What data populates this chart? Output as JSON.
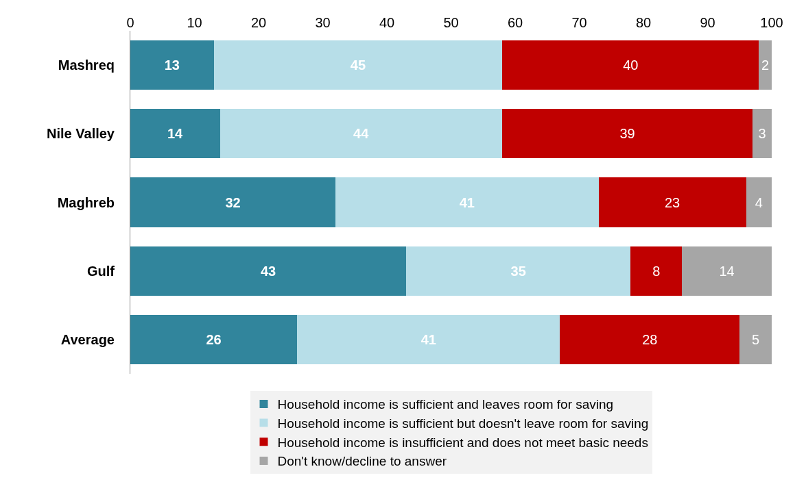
{
  "chart_data": {
    "type": "bar",
    "orientation": "horizontal",
    "stacked": true,
    "categories": [
      "Mashreq",
      "Nile Valley",
      "Maghreb",
      "Gulf",
      "Average"
    ],
    "series": [
      {
        "name": "Household income is sufficient and leaves room for saving",
        "color": "#31859c",
        "values": [
          13,
          14,
          32,
          43,
          26
        ]
      },
      {
        "name": "Household income is sufficient but doesn't leave room for saving",
        "color": "#b7dee8",
        "values": [
          45,
          44,
          41,
          35,
          41
        ]
      },
      {
        "name": "Household income is insufficient and does not meet basic needs",
        "color": "#c00000",
        "values": [
          40,
          39,
          23,
          8,
          28
        ]
      },
      {
        "name": "Don't know/decline to answer",
        "color": "#a6a6a6",
        "values": [
          2,
          3,
          4,
          14,
          5
        ]
      }
    ],
    "xlim": [
      0,
      100
    ],
    "xticks": [
      0,
      10,
      20,
      30,
      40,
      50,
      60,
      70,
      80,
      90,
      100
    ],
    "data_labels": true,
    "legend": "bottom"
  }
}
